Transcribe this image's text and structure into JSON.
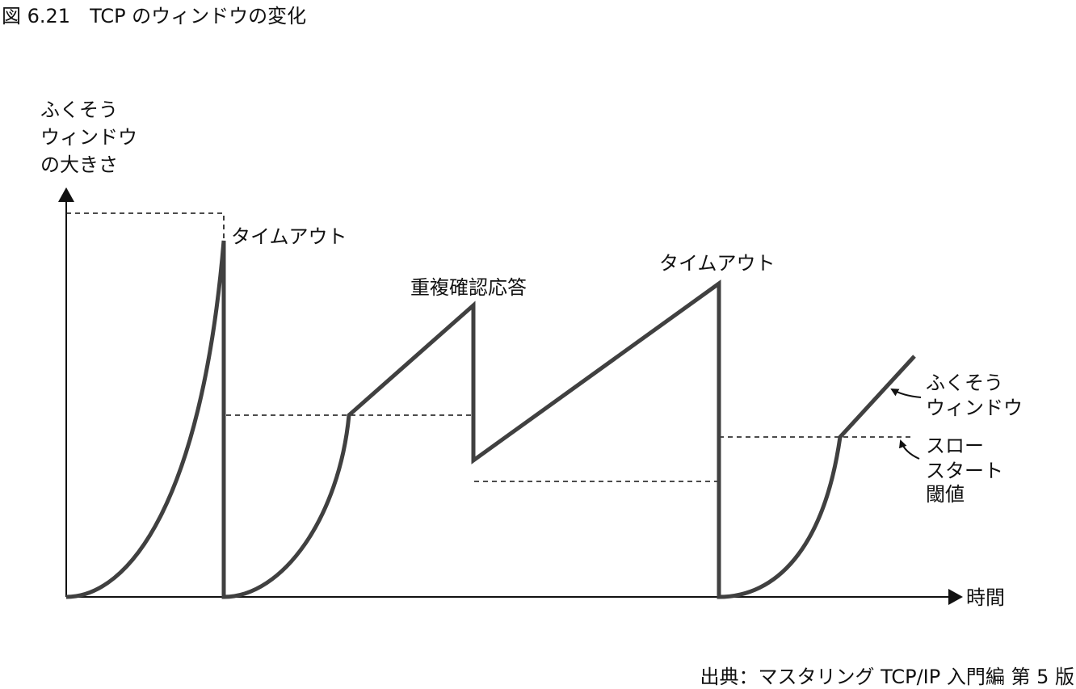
{
  "figure": {
    "title": "図 6.21　TCP のウィンドウの変化",
    "source": "出典：マスタリング TCP/IP 入門編 第 5 版"
  },
  "axes": {
    "y_label_lines": [
      "ふくそう",
      "ウィンドウ",
      "の大きさ"
    ],
    "x_label": "時間"
  },
  "annotations": {
    "timeout_1": "タイムアウト",
    "dup_ack": "重複確認応答",
    "timeout_2": "タイムアウト"
  },
  "legend": {
    "cwnd_lines": [
      "ふくそう",
      "ウィンドウ"
    ],
    "ssthresh_lines": [
      "スロー",
      "スタート",
      "閾値"
    ]
  },
  "colors": {
    "cwnd_line": "#404040",
    "axis": "#111111"
  }
}
